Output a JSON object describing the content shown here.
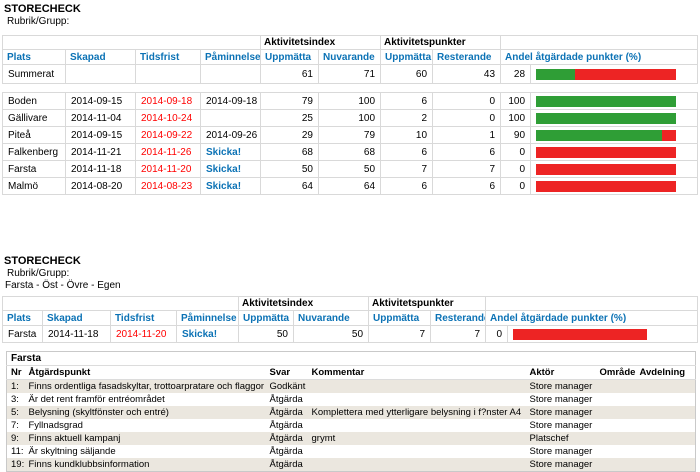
{
  "colors": {
    "bar_green": "#2f9e36",
    "bar_red": "#ed2424",
    "link_blue": "#0b72b5",
    "overdue_red": "#ff0000",
    "row_alt_beige": "#ebe7df"
  },
  "report1": {
    "title": "STORECHECK",
    "subtitle": "Rubrik/Grupp:",
    "group": "",
    "group_headers": {
      "aktivitetsindex": "Aktivitetsindex",
      "aktivitetspunkter": "Aktivitetspunkter"
    },
    "columns": [
      "Plats",
      "Skapad",
      "Tidsfrist",
      "Påminnelse",
      "Uppmätta",
      "Nuvarande",
      "Uppmätta",
      "Resterande",
      "Andel åtgärdade punkter (%)"
    ],
    "rows": [
      {
        "plats": "Summerat",
        "skapad": "",
        "tidsfrist": "",
        "paminnelse": "",
        "idx_uppmatta": "61",
        "idx_nuvarande": "71",
        "pkt_uppmatta": "60",
        "pkt_resterande": "43",
        "andel": 28,
        "summary": true,
        "spacer_after": true
      },
      {
        "plats": "Boden",
        "skapad": "2014-09-15",
        "tidsfrist": "2014-09-18",
        "paminnelse": "2014-09-18",
        "idx_uppmatta": "79",
        "idx_nuvarande": "100",
        "pkt_uppmatta": "6",
        "pkt_resterande": "0",
        "andel": 100
      },
      {
        "plats": "Gällivare",
        "skapad": "2014-11-04",
        "tidsfrist": "2014-10-24",
        "paminnelse": "",
        "idx_uppmatta": "25",
        "idx_nuvarande": "100",
        "pkt_uppmatta": "2",
        "pkt_resterande": "0",
        "andel": 100
      },
      {
        "plats": "Piteå",
        "skapad": "2014-09-15",
        "tidsfrist": "2014-09-22",
        "paminnelse": "2014-09-26",
        "idx_uppmatta": "29",
        "idx_nuvarande": "79",
        "pkt_uppmatta": "10",
        "pkt_resterande": "1",
        "andel": 90
      },
      {
        "plats": "Falkenberg",
        "skapad": "2014-11-21",
        "tidsfrist": "2014-11-26",
        "paminnelse": "Skicka!",
        "idx_uppmatta": "68",
        "idx_nuvarande": "68",
        "pkt_uppmatta": "6",
        "pkt_resterande": "6",
        "andel": 0
      },
      {
        "plats": "Farsta",
        "skapad": "2014-11-18",
        "tidsfrist": "2014-11-20",
        "paminnelse": "Skicka!",
        "idx_uppmatta": "50",
        "idx_nuvarande": "50",
        "pkt_uppmatta": "7",
        "pkt_resterande": "7",
        "andel": 0
      },
      {
        "plats": "Malmö",
        "skapad": "2014-08-20",
        "tidsfrist": "2014-08-23",
        "paminnelse": "Skicka!",
        "idx_uppmatta": "64",
        "idx_nuvarande": "64",
        "pkt_uppmatta": "6",
        "pkt_resterande": "6",
        "andel": 0
      }
    ]
  },
  "report2": {
    "title": "STORECHECK",
    "subtitle": "Rubrik/Grupp:",
    "group": "Farsta - Öst - Övre - Egen",
    "group_headers": {
      "aktivitetsindex": "Aktivitetsindex",
      "aktivitetspunkter": "Aktivitetspunkter"
    },
    "columns": [
      "Plats",
      "Skapad",
      "Tidsfrist",
      "Påminnelse",
      "Uppmätta",
      "Nuvarande",
      "Uppmätta",
      "Resterande",
      "Andel åtgärdade punkter (%)"
    ],
    "rows": [
      {
        "plats": "Farsta",
        "skapad": "2014-11-18",
        "tidsfrist": "2014-11-20",
        "paminnelse": "Skicka!",
        "idx_uppmatta": "50",
        "idx_nuvarande": "50",
        "pkt_uppmatta": "7",
        "pkt_resterande": "7",
        "andel": 0
      }
    ]
  },
  "detail": {
    "title": "Farsta",
    "columns": [
      "Nr",
      "Åtgärdspunkt",
      "Svar",
      "Kommentar",
      "Aktör",
      "Område",
      "Avdelning"
    ],
    "rows": [
      {
        "nr": "1:",
        "punkt": "Finns ordentliga fasadskyltar, trottoarpratare och flaggor",
        "svar": "Godkänt",
        "kommentar": "",
        "aktor": "Store manager",
        "omrade": "",
        "avdelning": ""
      },
      {
        "nr": "3:",
        "punkt": "Är det rent framför entréområdet",
        "svar": "Åtgärda",
        "kommentar": "",
        "aktor": "Store manager",
        "omrade": "",
        "avdelning": ""
      },
      {
        "nr": "5:",
        "punkt": "Belysning (skyltfönster och entré)",
        "svar": "Åtgärda",
        "kommentar": "Komplettera med ytterligare belysning i f?nster A4",
        "aktor": "Store manager",
        "omrade": "",
        "avdelning": ""
      },
      {
        "nr": "7:",
        "punkt": "Fyllnadsgrad",
        "svar": "Åtgärda",
        "kommentar": "",
        "aktor": "Store manager",
        "omrade": "",
        "avdelning": ""
      },
      {
        "nr": "9:",
        "punkt": "Finns aktuell kampanj",
        "svar": "Åtgärda",
        "kommentar": "grymt",
        "aktor": "Platschef",
        "omrade": "",
        "avdelning": ""
      },
      {
        "nr": "11:",
        "punkt": "Är skyltning säljande",
        "svar": "Åtgärda",
        "kommentar": "",
        "aktor": "Store manager",
        "omrade": "",
        "avdelning": ""
      },
      {
        "nr": "19:",
        "punkt": "Finns kundklubbsinformation",
        "svar": "Åtgärda",
        "kommentar": "",
        "aktor": "Store manager",
        "omrade": "",
        "avdelning": ""
      }
    ]
  }
}
